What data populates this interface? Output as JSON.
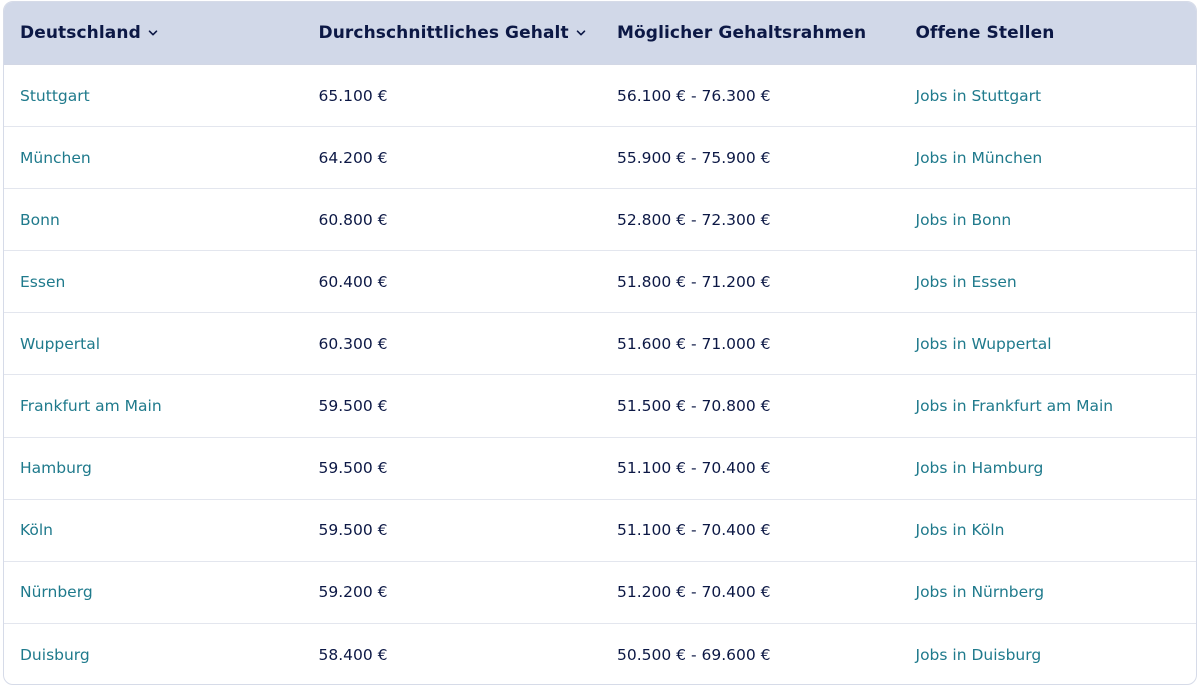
{
  "colors": {
    "header_bg": "#d1d8e8",
    "header_text": "#0c1845",
    "link": "#1f7a8c",
    "value": "#0c1845"
  },
  "header": {
    "columns": [
      {
        "label": "Deutschland",
        "has_dropdown": true,
        "icon": "chevron-down-icon"
      },
      {
        "label": "Durchschnittliches Gehalt",
        "has_dropdown": true,
        "icon": "chevron-down-icon"
      },
      {
        "label": "Möglicher Gehaltsrahmen",
        "has_dropdown": false
      },
      {
        "label": "Offene Stellen",
        "has_dropdown": false
      }
    ]
  },
  "rows": [
    {
      "city": "Stuttgart",
      "average": "65.100 €",
      "range": "56.100 € - 76.300 €",
      "jobs": "Jobs in Stuttgart"
    },
    {
      "city": "München",
      "average": "64.200 €",
      "range": "55.900 € - 75.900 €",
      "jobs": "Jobs in München"
    },
    {
      "city": "Bonn",
      "average": "60.800 €",
      "range": "52.800 € - 72.300 €",
      "jobs": "Jobs in Bonn"
    },
    {
      "city": "Essen",
      "average": "60.400 €",
      "range": "51.800 € - 71.200 €",
      "jobs": "Jobs in Essen"
    },
    {
      "city": "Wuppertal",
      "average": "60.300 €",
      "range": "51.600 € - 71.000 €",
      "jobs": "Jobs in Wuppertal"
    },
    {
      "city": "Frankfurt am Main",
      "average": "59.500 €",
      "range": "51.500 € - 70.800 €",
      "jobs": "Jobs in Frankfurt am Main"
    },
    {
      "city": "Hamburg",
      "average": "59.500 €",
      "range": "51.100 € - 70.400 €",
      "jobs": "Jobs in Hamburg"
    },
    {
      "city": "Köln",
      "average": "59.500 €",
      "range": "51.100 € - 70.400 €",
      "jobs": "Jobs in Köln"
    },
    {
      "city": "Nürnberg",
      "average": "59.200 €",
      "range": "51.200 € - 70.400 €",
      "jobs": "Jobs in Nürnberg"
    },
    {
      "city": "Duisburg",
      "average": "58.400 €",
      "range": "50.500 € - 69.600 €",
      "jobs": "Jobs in Duisburg"
    }
  ]
}
